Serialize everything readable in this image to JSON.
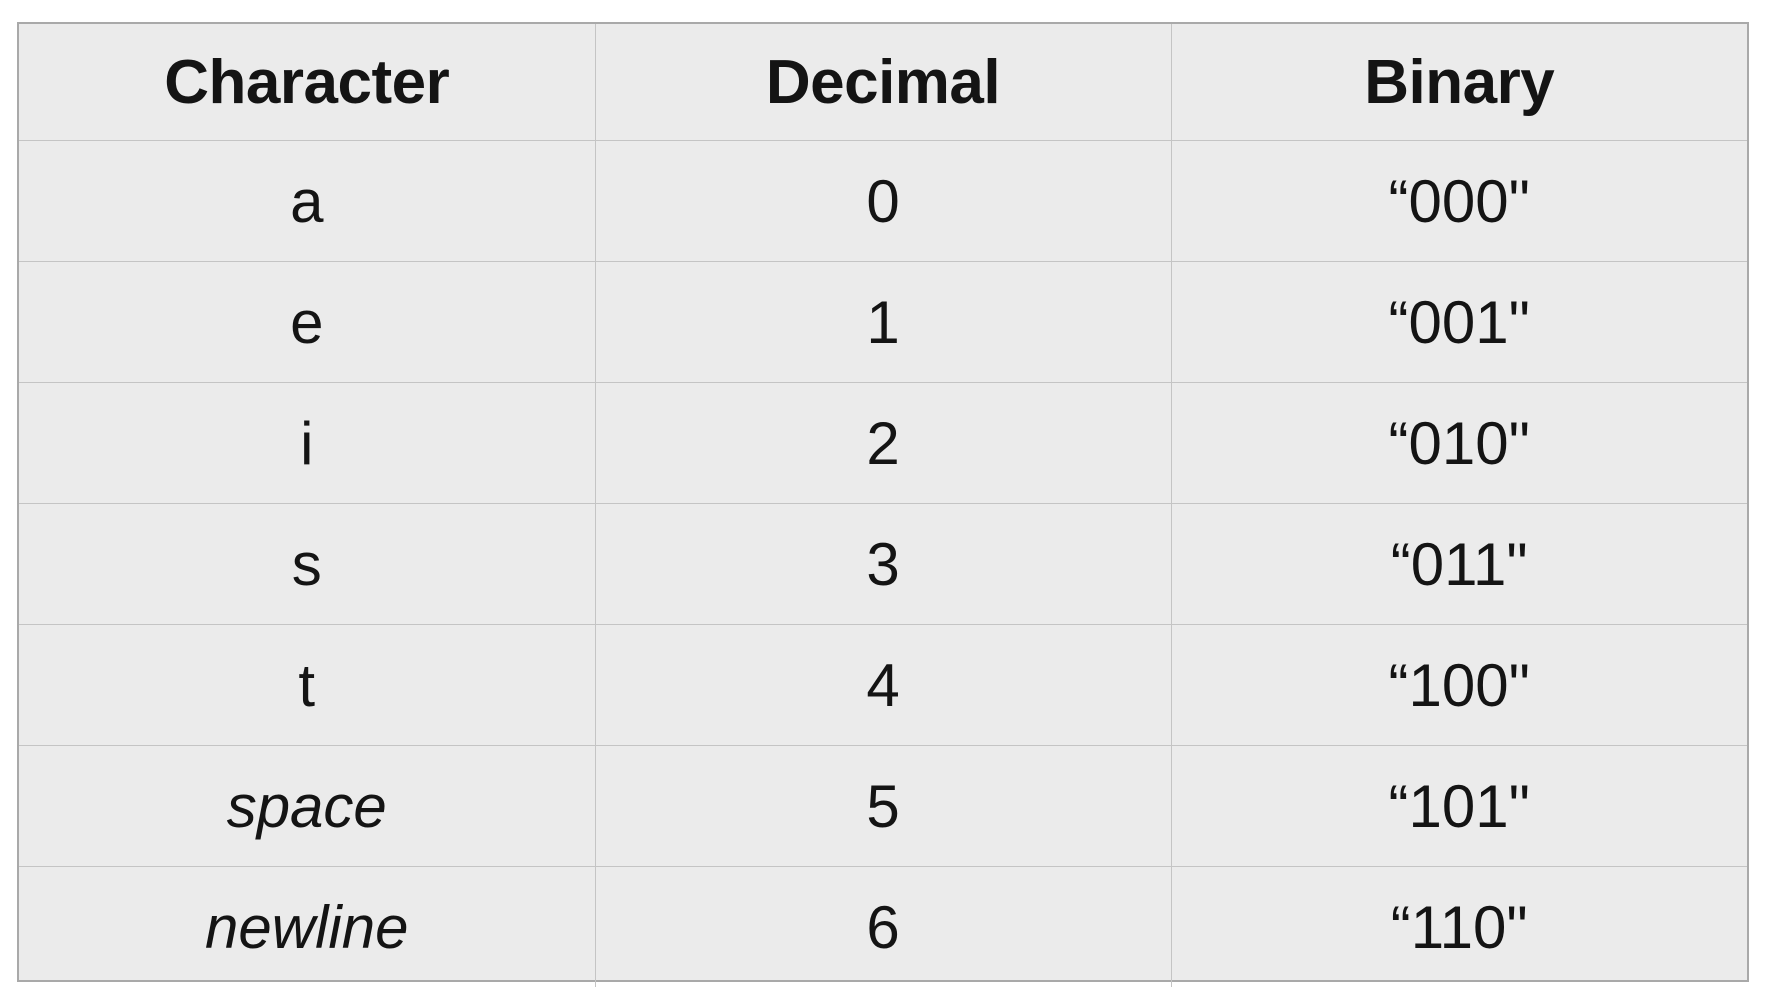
{
  "table": {
    "headers": [
      "Character",
      "Decimal",
      "Binary"
    ],
    "rows": [
      {
        "character": "a",
        "decimal": "0",
        "binary": "“000\"",
        "italic": false
      },
      {
        "character": "e",
        "decimal": "1",
        "binary": "“001\"",
        "italic": false
      },
      {
        "character": "i",
        "decimal": "2",
        "binary": "“010\"",
        "italic": false
      },
      {
        "character": "s",
        "decimal": "3",
        "binary": "“011\"",
        "italic": false
      },
      {
        "character": "t",
        "decimal": "4",
        "binary": "“100\"",
        "italic": false
      },
      {
        "character": "space",
        "decimal": "5",
        "binary": "“101\"",
        "italic": true
      },
      {
        "character": "newline",
        "decimal": "6",
        "binary": "“110\"",
        "italic": true
      }
    ]
  },
  "colors": {
    "background": "#ebebeb",
    "grid_line": "#c4c4c4",
    "outer_border": "#a9a9a9",
    "text": "#141414"
  }
}
